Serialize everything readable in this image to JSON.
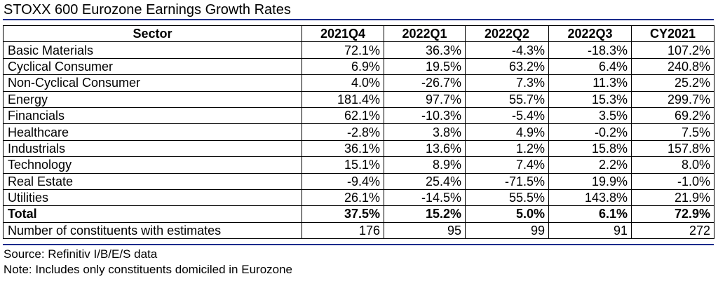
{
  "title": "STOXX 600 Eurozone Earnings Growth Rates",
  "table": {
    "headers": [
      "Sector",
      "2021Q4",
      "2022Q1",
      "2022Q2",
      "2022Q3",
      "CY2021"
    ],
    "rows": [
      [
        "Basic Materials",
        "72.1%",
        "36.3%",
        "-4.3%",
        "-18.3%",
        "107.2%"
      ],
      [
        "Cyclical Consumer",
        "6.9%",
        "19.5%",
        "63.2%",
        "6.4%",
        "240.8%"
      ],
      [
        "Non-Cyclical Consumer",
        "4.0%",
        "-26.7%",
        "7.3%",
        "11.3%",
        "25.2%"
      ],
      [
        "Energy",
        "181.4%",
        "97.7%",
        "55.7%",
        "15.3%",
        "299.7%"
      ],
      [
        "Financials",
        "62.1%",
        "-10.3%",
        "-5.4%",
        "3.5%",
        "69.2%"
      ],
      [
        "Healthcare",
        "-2.8%",
        "3.8%",
        "4.9%",
        "-0.2%",
        "7.5%"
      ],
      [
        "Industrials",
        "36.1%",
        "13.6%",
        "1.2%",
        "15.8%",
        "157.8%"
      ],
      [
        "Technology",
        "15.1%",
        "8.9%",
        "7.4%",
        "2.2%",
        "8.0%"
      ],
      [
        "Real Estate",
        "-9.4%",
        "25.4%",
        "-71.5%",
        "19.9%",
        "-1.0%"
      ],
      [
        "Utilities",
        "26.1%",
        "-14.5%",
        "55.5%",
        "143.8%",
        "21.9%"
      ],
      [
        "Total",
        "37.5%",
        "15.2%",
        "5.0%",
        "6.1%",
        "72.9%"
      ],
      [
        "Number of constituents with estimates",
        "176",
        "95",
        "99",
        "91",
        "272"
      ]
    ]
  },
  "footnotes": {
    "source": "Source: Refinitiv I/B/E/S data",
    "note": "Note: Includes only constituents domiciled in Eurozone"
  },
  "colors": {
    "rule": "#1a2b8c"
  }
}
